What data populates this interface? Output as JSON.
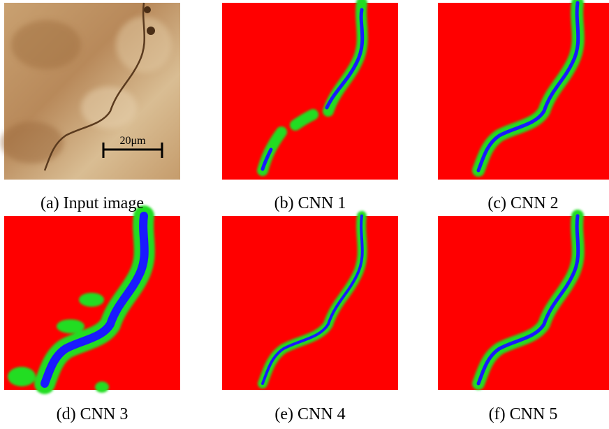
{
  "panels": [
    {
      "caption": "(a) Input image"
    },
    {
      "caption": "(b) CNN 1"
    },
    {
      "caption": "(c) CNN 2"
    },
    {
      "caption": "(d) CNN 3"
    },
    {
      "caption": "(e) CNN 4"
    },
    {
      "caption": "(f) CNN 5"
    }
  ],
  "scale_bar": "20μm"
}
